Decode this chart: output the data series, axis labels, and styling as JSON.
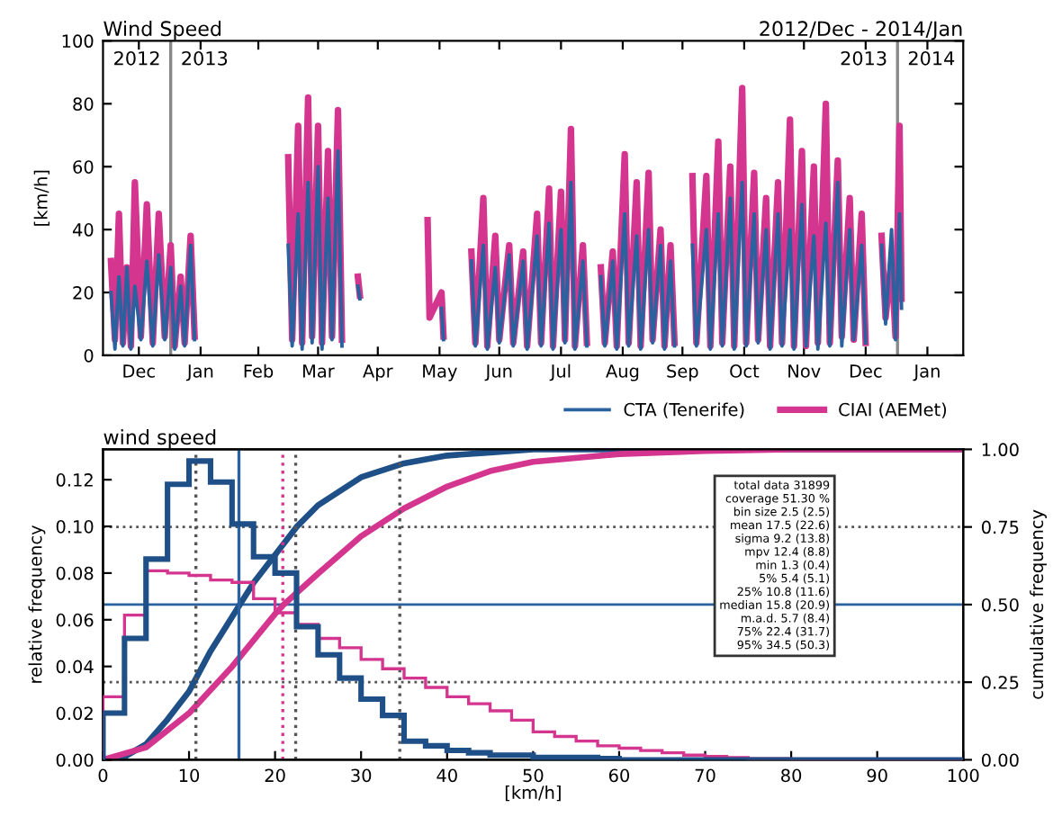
{
  "chart_data": [
    {
      "type": "line",
      "title": "Wind Speed",
      "subtitle": "2012/Dec - 2014/Jan",
      "ylabel": "[km/h]",
      "xlim": [
        "2012-11-28",
        "2014-02-03"
      ],
      "xticks": [
        {
          "value": "2012-12-16",
          "label": "Dec"
        },
        {
          "value": "2013-01-16",
          "label": "Jan"
        },
        {
          "value": "2013-02-14",
          "label": "Feb"
        },
        {
          "value": "2013-03-16",
          "label": "Mar"
        },
        {
          "value": "2013-04-15",
          "label": "Apr"
        },
        {
          "value": "2013-05-16",
          "label": "May"
        },
        {
          "value": "2013-06-15",
          "label": "Jun"
        },
        {
          "value": "2013-07-16",
          "label": "Jul"
        },
        {
          "value": "2013-08-16",
          "label": "Aug"
        },
        {
          "value": "2013-09-15",
          "label": "Sep"
        },
        {
          "value": "2013-10-16",
          "label": "Oct"
        },
        {
          "value": "2013-11-15",
          "label": "Nov"
        },
        {
          "value": "2013-12-16",
          "label": "Dec"
        },
        {
          "value": "2014-01-16",
          "label": "Jan"
        }
      ],
      "ylim": [
        0,
        100
      ],
      "yticks": [
        0,
        20,
        40,
        60,
        80,
        100
      ],
      "ref_lines": [
        {
          "axis": "x",
          "value": "2013-01-01",
          "color": "#888888"
        },
        {
          "axis": "x",
          "value": "2014-01-01",
          "color": "#888888"
        }
      ],
      "annotations": [
        "2012",
        "2013",
        "2013",
        "2014"
      ],
      "legend": "bottom right",
      "grid": false,
      "series": [
        {
          "name": "CTA (Tenerife)",
          "color": "#2a62a0",
          "x": [
            "2012-12-02",
            "2012-12-04",
            "2012-12-06",
            "2012-12-08",
            "2012-12-10",
            "2012-12-12",
            "2012-12-14",
            "2012-12-17",
            "2012-12-20",
            "2012-12-23",
            "2012-12-26",
            "2012-12-29",
            "2013-01-01",
            "2013-01-03",
            "2013-01-06",
            "2013-01-08",
            "2013-01-11",
            "2013-01-13",
            "2013-01-14",
            "2013-03-01",
            "2013-03-03",
            "2013-03-06",
            "2013-03-08",
            "2013-03-11",
            "2013-03-13",
            "2013-03-16",
            "2013-03-18",
            "2013-03-21",
            "2013-03-23",
            "2013-03-26",
            "2013-03-28",
            "2013-03-29",
            "2013-04-05",
            "2013-04-06",
            "2013-04-07",
            "2013-05-17",
            "2013-05-18",
            "2013-05-19",
            "2013-06-01",
            "2013-06-03",
            "2013-06-07",
            "2013-06-09",
            "2013-06-13",
            "2013-06-15",
            "2013-06-20",
            "2013-06-22",
            "2013-06-27",
            "2013-06-29",
            "2013-07-04",
            "2013-07-06",
            "2013-07-10",
            "2013-07-12",
            "2013-07-16",
            "2013-07-18",
            "2013-07-21",
            "2013-07-23",
            "2013-07-27",
            "2013-07-29",
            "2013-08-01",
            "2013-08-05",
            "2013-08-07",
            "2013-08-11",
            "2013-08-13",
            "2013-08-17",
            "2013-08-19",
            "2013-08-23",
            "2013-08-25",
            "2013-08-29",
            "2013-08-31",
            "2013-09-04",
            "2013-09-06",
            "2013-09-09",
            "2013-09-11",
            "2013-09-13",
            "2013-09-20",
            "2013-09-22",
            "2013-09-27",
            "2013-09-29",
            "2013-10-03",
            "2013-10-05",
            "2013-10-09",
            "2013-10-11",
            "2013-10-15",
            "2013-10-17",
            "2013-10-21",
            "2013-10-23",
            "2013-10-27",
            "2013-10-29",
            "2013-11-02",
            "2013-11-04",
            "2013-11-08",
            "2013-11-10",
            "2013-11-14",
            "2013-11-16",
            "2013-11-20",
            "2013-11-22",
            "2013-11-26",
            "2013-11-28",
            "2013-12-02",
            "2013-12-04",
            "2013-12-08",
            "2013-12-10",
            "2013-12-14",
            "2013-12-16",
            "2013-12-18",
            "2013-12-24",
            "2013-12-26",
            "2013-12-29",
            "2013-12-31",
            "2014-01-02",
            "2014-01-03"
          ],
          "values": [
            20,
            2,
            25,
            3,
            28,
            2,
            22,
            5,
            30,
            3,
            32,
            5,
            28,
            2,
            22,
            3,
            35,
            5,
            null,
            35,
            3,
            45,
            2,
            55,
            4,
            60,
            2,
            50,
            5,
            65,
            3,
            null,
            22,
            18,
            null,
            15,
            5,
            null,
            30,
            3,
            35,
            2,
            28,
            4,
            32,
            3,
            30,
            2,
            38,
            3,
            42,
            2,
            40,
            4,
            55,
            2,
            30,
            3,
            null,
            25,
            3,
            30,
            2,
            45,
            3,
            38,
            2,
            40,
            4,
            35,
            2,
            30,
            3,
            null,
            35,
            3,
            40,
            2,
            45,
            3,
            50,
            2,
            55,
            3,
            45,
            4,
            40,
            2,
            45,
            3,
            40,
            2,
            48,
            3,
            38,
            2,
            42,
            3,
            55,
            3,
            40,
            5,
            35,
            4,
            null,
            35,
            10,
            40,
            5,
            45,
            15
          ]
        },
        {
          "name": "CIAI (AEMet)",
          "color": "#d4358e",
          "x": [
            "2012-12-02",
            "2012-12-04",
            "2012-12-06",
            "2012-12-08",
            "2012-12-10",
            "2012-12-12",
            "2012-12-14",
            "2012-12-17",
            "2012-12-20",
            "2012-12-23",
            "2012-12-26",
            "2012-12-29",
            "2013-01-01",
            "2013-01-03",
            "2013-01-06",
            "2013-01-08",
            "2013-01-11",
            "2013-01-13",
            "2013-01-14",
            "2013-03-01",
            "2013-03-03",
            "2013-03-06",
            "2013-03-08",
            "2013-03-11",
            "2013-03-13",
            "2013-03-16",
            "2013-03-18",
            "2013-03-21",
            "2013-03-23",
            "2013-03-26",
            "2013-03-28",
            "2013-03-29",
            "2013-04-05",
            "2013-04-06",
            "2013-04-07",
            "2013-05-10",
            "2013-05-11",
            "2013-05-17",
            "2013-05-18",
            "2013-05-19",
            "2013-06-01",
            "2013-06-03",
            "2013-06-07",
            "2013-06-09",
            "2013-06-13",
            "2013-06-15",
            "2013-06-20",
            "2013-06-22",
            "2013-06-27",
            "2013-06-29",
            "2013-07-04",
            "2013-07-06",
            "2013-07-10",
            "2013-07-12",
            "2013-07-16",
            "2013-07-18",
            "2013-07-21",
            "2013-07-23",
            "2013-07-27",
            "2013-07-29",
            "2013-08-01",
            "2013-08-05",
            "2013-08-07",
            "2013-08-11",
            "2013-08-13",
            "2013-08-17",
            "2013-08-19",
            "2013-08-23",
            "2013-08-25",
            "2013-08-29",
            "2013-08-31",
            "2013-09-04",
            "2013-09-06",
            "2013-09-09",
            "2013-09-11",
            "2013-09-13",
            "2013-09-20",
            "2013-09-22",
            "2013-09-27",
            "2013-09-29",
            "2013-10-03",
            "2013-10-05",
            "2013-10-09",
            "2013-10-11",
            "2013-10-15",
            "2013-10-17",
            "2013-10-21",
            "2013-10-23",
            "2013-10-27",
            "2013-10-29",
            "2013-11-02",
            "2013-11-04",
            "2013-11-08",
            "2013-11-10",
            "2013-11-14",
            "2013-11-16",
            "2013-11-20",
            "2013-11-22",
            "2013-11-26",
            "2013-11-28",
            "2013-12-02",
            "2013-12-04",
            "2013-12-08",
            "2013-12-10",
            "2013-12-14",
            "2013-12-16",
            "2013-12-18",
            "2013-12-24",
            "2013-12-26",
            "2013-12-29",
            "2013-12-31",
            "2014-01-02",
            "2014-01-03"
          ],
          "values": [
            30,
            5,
            45,
            4,
            28,
            3,
            55,
            6,
            48,
            4,
            45,
            6,
            35,
            3,
            25,
            4,
            38,
            6,
            null,
            63,
            5,
            73,
            4,
            82,
            6,
            73,
            4,
            65,
            6,
            78,
            5,
            null,
            25,
            19,
            null,
            43,
            12,
            20,
            6,
            null,
            33,
            4,
            50,
            3,
            38,
            5,
            35,
            4,
            33,
            3,
            45,
            4,
            53,
            3,
            52,
            5,
            72,
            3,
            35,
            4,
            null,
            28,
            4,
            33,
            3,
            64,
            4,
            55,
            3,
            58,
            5,
            40,
            3,
            35,
            4,
            null,
            57,
            4,
            57,
            3,
            68,
            4,
            60,
            3,
            85,
            4,
            58,
            5,
            50,
            3,
            55,
            4,
            75,
            3,
            65,
            3,
            60,
            4,
            80,
            4,
            62,
            6,
            50,
            5,
            45,
            4,
            null,
            38,
            12,
            30,
            6,
            73,
            18
          ]
        }
      ]
    },
    {
      "type": "histogram",
      "title": "wind speed",
      "xlabel": "[km/h]",
      "ylabel": "relative frequency",
      "y2label": "cumulative frequency",
      "xlim": [
        0,
        100
      ],
      "xticks": [
        0,
        10,
        20,
        30,
        40,
        50,
        60,
        70,
        80,
        90,
        100
      ],
      "ylim": [
        0,
        0.133
      ],
      "yticks": [
        {
          "value": 0,
          "label": "0.00"
        },
        {
          "value": 0.02,
          "label": "0.02"
        },
        {
          "value": 0.04,
          "label": "0.04"
        },
        {
          "value": 0.06,
          "label": "0.06"
        },
        {
          "value": 0.08,
          "label": "0.08"
        },
        {
          "value": 0.1,
          "label": "0.10"
        },
        {
          "value": 0.12,
          "label": "0.12"
        }
      ],
      "y2lim": [
        0,
        1.0
      ],
      "y2ticks": [
        {
          "value": 0,
          "label": "0.00"
        },
        {
          "value": 0.25,
          "label": "0.25"
        },
        {
          "value": 0.5,
          "label": "0.50"
        },
        {
          "value": 0.75,
          "label": "0.75"
        },
        {
          "value": 1.0,
          "label": "1.00"
        }
      ],
      "bins": [
        0,
        2.5,
        5,
        7.5,
        10,
        12.5,
        15,
        17.5,
        20,
        22.5,
        25,
        27.5,
        30,
        32.5,
        35,
        37.5,
        40,
        42.5,
        45,
        47.5,
        50,
        52.5,
        55,
        57.5,
        60,
        62.5,
        65,
        67.5,
        70,
        72.5,
        75,
        77.5,
        80,
        82.5,
        85,
        87.5,
        90,
        92.5,
        95,
        97.5,
        100
      ],
      "legend": false,
      "grid": false,
      "ref_lines": [
        {
          "axis": "y2",
          "value": 0.25,
          "color": "#555555",
          "line_style": "dotted"
        },
        {
          "axis": "y2",
          "value": 0.5,
          "color": "#2a62a0",
          "line_style": "solid"
        },
        {
          "axis": "y2",
          "value": 0.75,
          "color": "#555555",
          "line_style": "dotted"
        },
        {
          "axis": "x",
          "value": 10.8,
          "color": "#555555",
          "line_style": "dotted"
        },
        {
          "axis": "x",
          "value": 15.8,
          "color": "#2a62a0",
          "line_style": "solid"
        },
        {
          "axis": "x",
          "value": 20.9,
          "color": "#d4358e",
          "line_style": "dotted"
        },
        {
          "axis": "x",
          "value": 22.4,
          "color": "#555555",
          "line_style": "dotted"
        },
        {
          "axis": "x",
          "value": 34.5,
          "color": "#555555",
          "line_style": "dotted"
        }
      ],
      "annotations": [
        "total data 31899",
        "coverage 51.30 %",
        "bin size 2.5 (2.5)",
        "mean 17.5 (22.6)",
        "sigma 9.2 (13.8)",
        "mpv 12.4 (8.8)",
        "min 1.3 (0.4)",
        "5% 5.4 (5.1)",
        "25% 10.8 (11.6)",
        "median 15.8 (20.9)",
        "m.a.d. 5.7 (8.4)",
        "75% 22.4 (31.7)",
        "95% 34.5 (50.3)"
      ],
      "series": [
        {
          "color": "#1e4f86",
          "values": [
            0.02,
            0.052,
            0.086,
            0.118,
            0.128,
            0.119,
            0.101,
            0.087,
            0.08,
            0.057,
            0.045,
            0.035,
            0.026,
            0.019,
            0.008,
            0.006,
            0.004,
            0.003,
            0.002,
            0.002,
            0.001,
            0.001,
            0.001,
            0.0005,
            0,
            0,
            0,
            0,
            0,
            0,
            0,
            0,
            0,
            0,
            0,
            0,
            0,
            0,
            0,
            0
          ]
        },
        {
          "color": "#d4358e",
          "values": [
            0.027,
            0.062,
            0.081,
            0.08,
            0.079,
            0.077,
            0.076,
            0.069,
            0.063,
            0.058,
            0.052,
            0.048,
            0.043,
            0.039,
            0.035,
            0.031,
            0.027,
            0.024,
            0.021,
            0.017,
            0.012,
            0.01,
            0.008,
            0.006,
            0.005,
            0.004,
            0.003,
            0.002,
            0.0015,
            0.001,
            0.0005,
            0.0005,
            0,
            0,
            0,
            0,
            0,
            0,
            0,
            0
          ]
        },
        {
          "type": "line",
          "axis": "y2",
          "color": "#1e4f86",
          "x": [
            0,
            2.5,
            5,
            7.5,
            10,
            12.5,
            15,
            17.5,
            20,
            22.5,
            25,
            30,
            35,
            40,
            45,
            50,
            60,
            100
          ],
          "values": [
            0,
            0.01,
            0.05,
            0.13,
            0.22,
            0.35,
            0.46,
            0.57,
            0.66,
            0.75,
            0.82,
            0.91,
            0.955,
            0.98,
            0.99,
            1.0,
            1.0,
            1.0
          ]
        },
        {
          "type": "line",
          "axis": "y2",
          "color": "#d4358e",
          "x": [
            0,
            5,
            10,
            15,
            20,
            21,
            25,
            30,
            35,
            40,
            45,
            50,
            60,
            70,
            80,
            100
          ],
          "values": [
            0,
            0.04,
            0.15,
            0.3,
            0.47,
            0.5,
            0.6,
            0.72,
            0.81,
            0.88,
            0.93,
            0.96,
            0.985,
            0.995,
            1.0,
            1.0
          ]
        }
      ]
    }
  ]
}
